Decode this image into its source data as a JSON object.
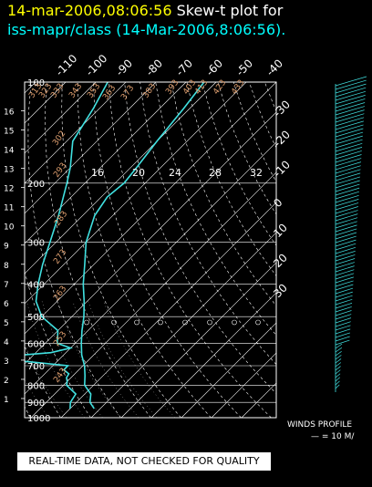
{
  "header": {
    "time_stamp": "14-mar-2006,08:06:56",
    "title_suffix": "Skew-t plot for",
    "subtitle": "iss-mapr/class (14-Mar-2006,8:06:56)."
  },
  "notice": "REAL-TIME DATA, NOT CHECKED FOR QUALITY",
  "winds_profile": {
    "title": "WINDS PROFILE",
    "scale_label": "— = 10 M/"
  },
  "colors": {
    "temperature_trace": "#40e0e0",
    "dewpoint_trace": "#40e0e0",
    "isotherm": "#ffffff",
    "dry_adiabat": "#ffffff",
    "mixing_ratio": "#bbbbbb",
    "theta_label": "#e0a070",
    "pressure_label": "#ffffff",
    "wind_barb": "#40e0e0"
  },
  "chart_data": {
    "type": "line",
    "title": "14-mar-2006,08:06:56 Skew-t plot for iss-mapr/class (14-Mar-2006,8:06:56).",
    "y_axis": {
      "quantity": "pressure (hPa)",
      "scale": "log",
      "range": [
        1000,
        100
      ],
      "ticks": [
        "100",
        "200",
        "300",
        "400",
        "500",
        "600",
        "700",
        "800",
        "900",
        "1000"
      ]
    },
    "height_axis": {
      "ticks": [
        "1",
        "2",
        "3",
        "4",
        "5",
        "6",
        "7",
        "8",
        "9",
        "10",
        "11",
        "12",
        "13",
        "14",
        "15",
        "16"
      ]
    },
    "top_temperature_ticks": [
      "-110",
      "-100",
      "-90",
      "-80",
      "-70",
      "-60",
      "-50",
      "-40"
    ],
    "right_temperature_ticks": [
      "-30",
      "-20",
      "-10",
      "0",
      "10",
      "20",
      "30"
    ],
    "mixing_ratio_labels": [
      "16",
      "20",
      "24",
      "28",
      "32"
    ],
    "theta_labels": [
      "313",
      "323",
      "333",
      "343",
      "353",
      "363",
      "373",
      "383",
      "393",
      "403",
      "413",
      "423",
      "433",
      "302",
      "293",
      "283",
      "273",
      "263",
      "253",
      "243"
    ],
    "grid": true,
    "series": [
      {
        "kind": "temperature",
        "points": [
          {
            "p": 940,
            "t": 8.0
          },
          {
            "p": 900,
            "t": 4.5
          },
          {
            "p": 850,
            "t": 2.0
          },
          {
            "p": 800,
            "t": -3.0
          },
          {
            "p": 750,
            "t": -6.0
          },
          {
            "p": 700,
            "t": -9.5
          },
          {
            "p": 650,
            "t": -14.0
          },
          {
            "p": 600,
            "t": -18.0
          },
          {
            "p": 550,
            "t": -22.0
          },
          {
            "p": 500,
            "t": -26.0
          },
          {
            "p": 450,
            "t": -31.0
          },
          {
            "p": 400,
            "t": -37.0
          },
          {
            "p": 350,
            "t": -43.0
          },
          {
            "p": 300,
            "t": -50.0
          },
          {
            "p": 250,
            "t": -56.0
          },
          {
            "p": 220,
            "t": -58.0
          },
          {
            "p": 200,
            "t": -57.0
          },
          {
            "p": 180,
            "t": -58.0
          },
          {
            "p": 150,
            "t": -60.0
          },
          {
            "p": 120,
            "t": -62.0
          },
          {
            "p": 100,
            "t": -64.0
          }
        ]
      },
      {
        "kind": "dewpoint",
        "points": [
          {
            "p": 940,
            "t": 0.0
          },
          {
            "p": 900,
            "t": -2.0
          },
          {
            "p": 850,
            "t": -3.0
          },
          {
            "p": 800,
            "t": -9.0
          },
          {
            "p": 780,
            "t": -10.0
          },
          {
            "p": 760,
            "t": -11.5
          },
          {
            "p": 740,
            "t": -12.0
          },
          {
            "p": 720,
            "t": -15.0
          },
          {
            "p": 700,
            "t": -15.0
          },
          {
            "p": 680,
            "t": -30.0
          },
          {
            "p": 670,
            "t": -44.0
          },
          {
            "p": 660,
            "t": -42.0
          },
          {
            "p": 640,
            "t": -25.0
          },
          {
            "p": 620,
            "t": -20.0
          },
          {
            "p": 600,
            "t": -26.0
          },
          {
            "p": 550,
            "t": -30.0
          },
          {
            "p": 500,
            "t": -40.0
          },
          {
            "p": 450,
            "t": -47.0
          },
          {
            "p": 400,
            "t": -52.0
          },
          {
            "p": 350,
            "t": -57.0
          },
          {
            "p": 300,
            "t": -62.0
          },
          {
            "p": 250,
            "t": -68.0
          },
          {
            "p": 200,
            "t": -76.0
          },
          {
            "p": 180,
            "t": -80.0
          },
          {
            "p": 150,
            "t": -88.0
          },
          {
            "p": 120,
            "t": -92.0
          },
          {
            "p": 100,
            "t": -96.0
          }
        ]
      }
    ]
  }
}
